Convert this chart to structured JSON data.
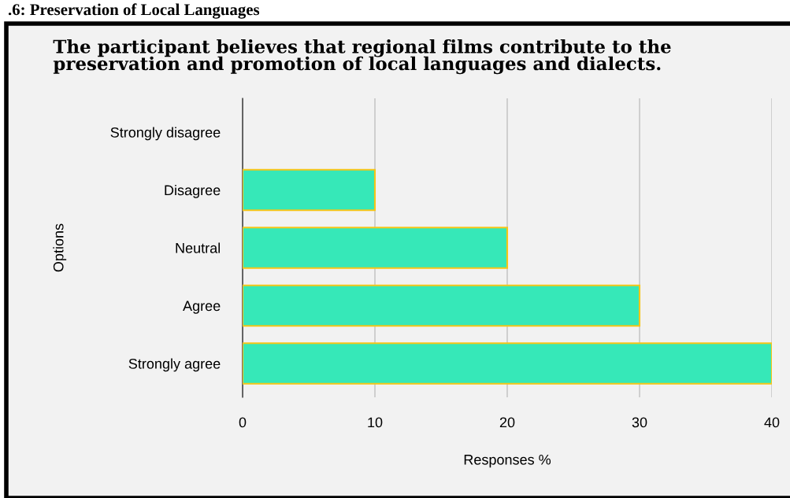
{
  "chart_data": {
    "type": "bar",
    "orientation": "horizontal",
    "annotations": [
      ".6: Preservation of Local Languages"
    ],
    "title": "The participant believes that regional films contribute to the preservation and promotion of local languages and dialects.",
    "categories": [
      "Strongly disagree",
      "Disagree",
      "Neutral",
      "Agree",
      "Strongly agree"
    ],
    "values": [
      0,
      10,
      20,
      30,
      40
    ],
    "color": "#36e8b8",
    "xlim": [
      0,
      40
    ],
    "xticks": [
      0,
      10,
      20,
      30,
      40
    ],
    "xlabel": "Responses %",
    "ylabel": "Options",
    "grid": "x",
    "legend": false
  }
}
